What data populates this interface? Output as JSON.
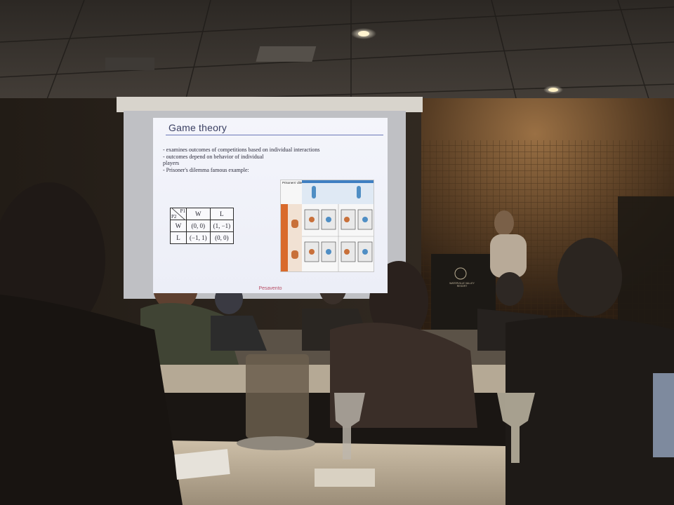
{
  "slide": {
    "title": "Game theory",
    "bullets": [
      "- examines outcomes of competitions based on individual interactions",
      "- outcomes depend on behavior of individual",
      "players",
      "- Prisoner's dilemma famous example:"
    ],
    "payoff_table": {
      "corner_col": "P1",
      "corner_row": "P2",
      "columns": [
        "W",
        "L"
      ],
      "rows": [
        {
          "label": "W",
          "cells": [
            "(0, 0)",
            "(1, −1)"
          ]
        },
        {
          "label": "L",
          "cells": [
            "(−1, 1)",
            "(0, 0)"
          ]
        }
      ]
    },
    "pd_graphic_label": "Prisoners' dilemma",
    "footer": "Pesavento"
  },
  "podium_sign": "WATERVILLE VALLEY RESORT",
  "colors": {
    "slide_bg": "#eef0f8",
    "title_text": "#3a3f62",
    "footer_text": "#b84e67",
    "wall_wood": "#6e4d2c",
    "table_cloth": "#c9bca6"
  }
}
